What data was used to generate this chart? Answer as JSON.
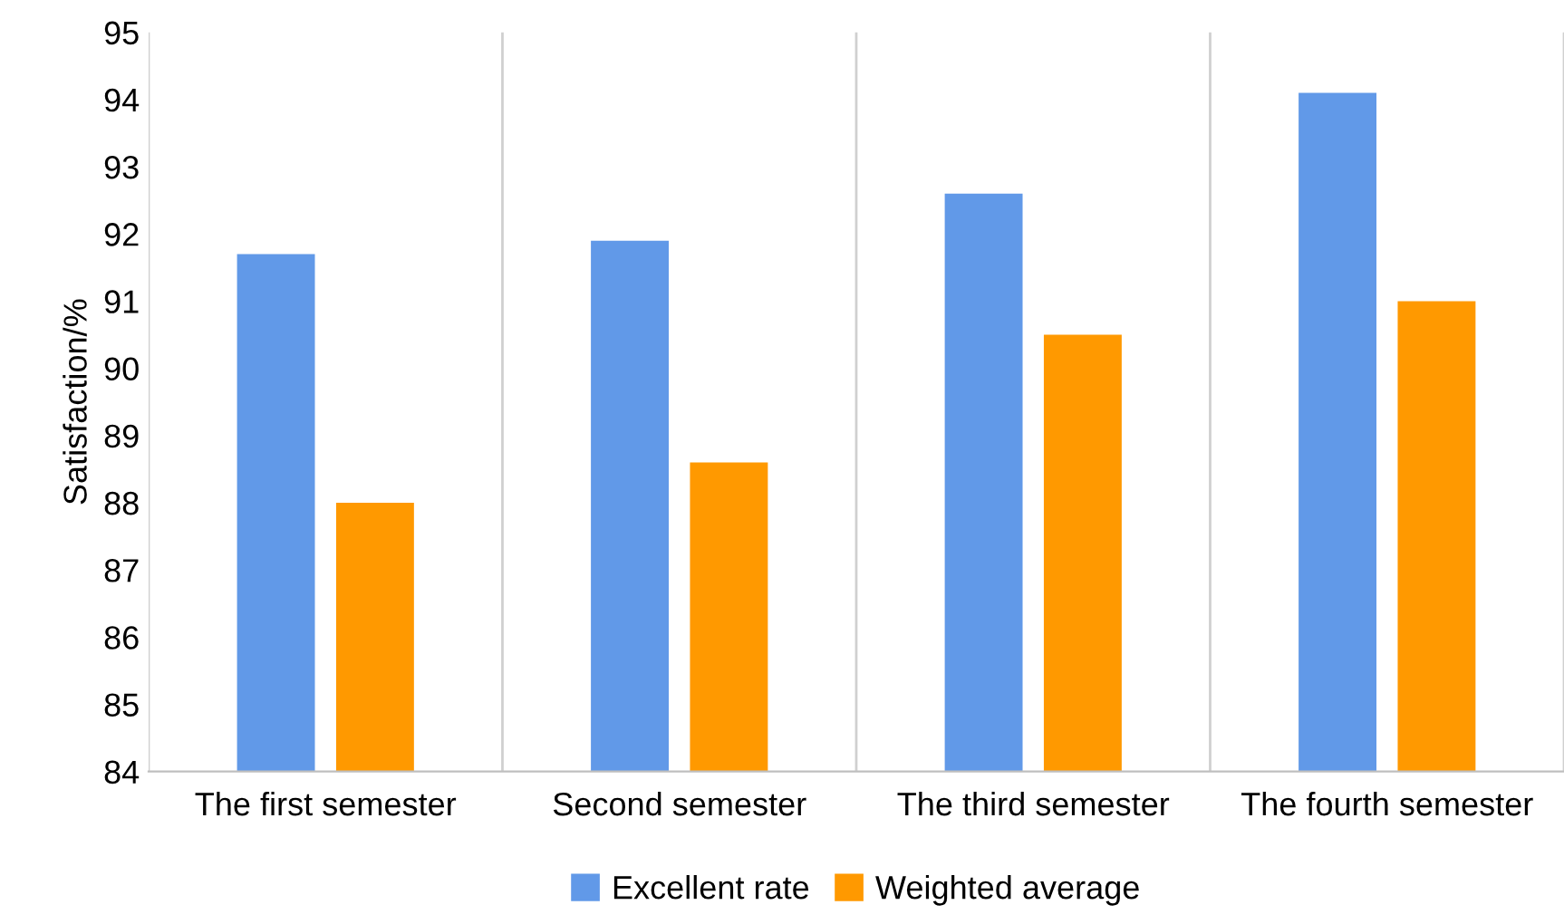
{
  "chart_data": {
    "type": "bar",
    "ylabel": "Satisfaction/%",
    "categories": [
      "The first semester",
      "Second semester",
      "The third semester",
      "The fourth semester"
    ],
    "series": [
      {
        "name": "Excellent rate",
        "color": "#6199e8",
        "values": [
          91.7,
          91.9,
          92.6,
          94.1
        ]
      },
      {
        "name": "Weighted average",
        "color": "#ff9900",
        "values": [
          88.0,
          88.6,
          90.5,
          91.0
        ]
      }
    ],
    "ylim": [
      84,
      95
    ],
    "yticks": [
      84,
      85,
      86,
      87,
      88,
      89,
      90,
      91,
      92,
      93,
      94,
      95
    ],
    "grid": "x",
    "legend": "bottom"
  }
}
